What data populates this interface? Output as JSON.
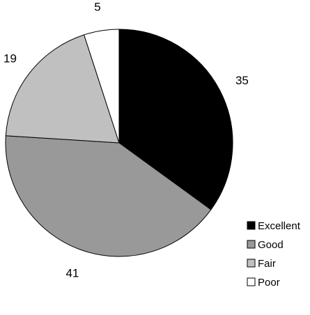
{
  "chart_data": {
    "type": "pie",
    "categories": [
      "Excellent",
      "Good",
      "Fair",
      "Poor"
    ],
    "values": [
      35,
      41,
      19,
      5
    ],
    "colors": [
      "#000000",
      "#999999",
      "#c0c0c0",
      "#ffffff"
    ],
    "data_labels": [
      "35",
      "41",
      "19",
      "5"
    ],
    "legend": {
      "position": "bottom-right",
      "items": [
        "Excellent",
        "Good",
        "Fair",
        "Poor"
      ]
    },
    "title": ""
  }
}
